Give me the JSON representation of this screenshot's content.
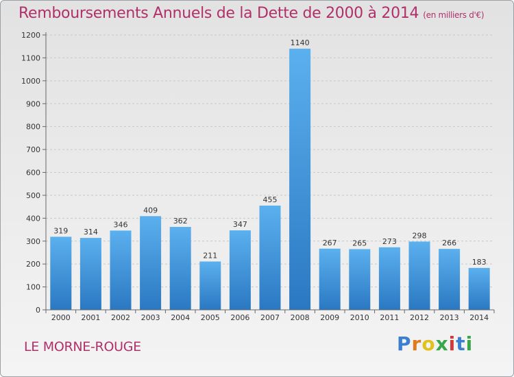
{
  "header": {
    "title": "Remboursements Annuels de la Dette de 2000 à 2014",
    "unit": "(en milliers d'€)"
  },
  "footer": {
    "commune": "LE MORNE-ROUGE",
    "brand_letters": [
      "P",
      "r",
      "o",
      "x",
      "i",
      "t",
      "i"
    ],
    "brand_colors": [
      "#3a7fd0",
      "#e07a1f",
      "#e0c21f",
      "#3aa64a",
      "#d03a3a",
      "#3a7fd0",
      "#3aa64a"
    ]
  },
  "chart_data": {
    "type": "bar",
    "title": "Remboursements Annuels de la Dette de 2000 à 2014",
    "categories": [
      "2000",
      "2001",
      "2002",
      "2003",
      "2004",
      "2005",
      "2006",
      "2007",
      "2008",
      "2009",
      "2010",
      "2011",
      "2012",
      "2013",
      "2014"
    ],
    "values": [
      319,
      314,
      346,
      409,
      362,
      211,
      347,
      455,
      1140,
      267,
      265,
      273,
      298,
      266,
      183
    ],
    "ylim": [
      0,
      1200
    ],
    "yticks": [
      0,
      100,
      200,
      300,
      400,
      500,
      600,
      700,
      800,
      900,
      1000,
      1100,
      1200
    ],
    "grid": true,
    "bar_color": "#3b94dc"
  }
}
